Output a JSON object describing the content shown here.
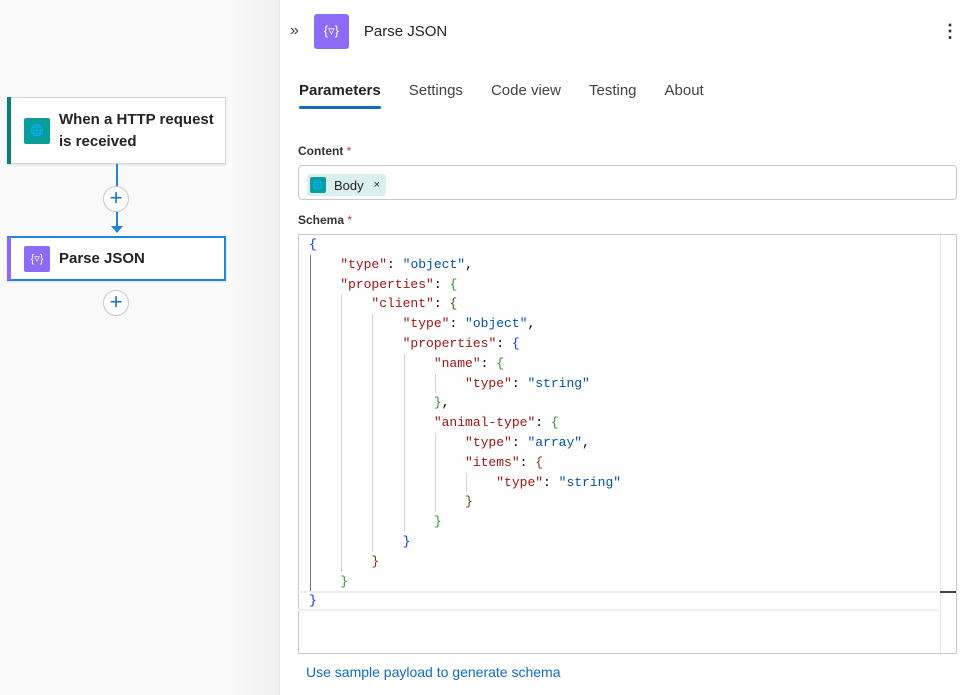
{
  "canvas": {
    "nodes": [
      {
        "label": "When a HTTP request is received",
        "icon": "http-request-icon",
        "color": "#0a9e9a"
      },
      {
        "label": "Parse JSON",
        "icon": "parse-json-icon",
        "color": "#8c6cf7"
      }
    ]
  },
  "panel": {
    "title": "Parse JSON",
    "icon": "parse-json-icon",
    "tabs": [
      "Parameters",
      "Settings",
      "Code view",
      "Testing",
      "About"
    ],
    "active_tab": "Parameters",
    "content_label": "Content",
    "schema_label": "Schema",
    "required_mark": "*",
    "content_token": {
      "label": "Body",
      "remove": "×"
    },
    "schema_lines": [
      {
        "i": 0,
        "t": [
          [
            "b0",
            "{"
          ]
        ]
      },
      {
        "i": 1,
        "t": [
          [
            "k",
            "\"type\""
          ],
          [
            "p",
            ": "
          ],
          [
            "s",
            "\"object\""
          ],
          [
            "p",
            ","
          ]
        ]
      },
      {
        "i": 1,
        "t": [
          [
            "k",
            "\"properties\""
          ],
          [
            "p",
            ": "
          ],
          [
            "b1",
            "{"
          ]
        ]
      },
      {
        "i": 2,
        "t": [
          [
            "k",
            "\"client\""
          ],
          [
            "p",
            ": "
          ],
          [
            "b2",
            "{"
          ]
        ]
      },
      {
        "i": 3,
        "t": [
          [
            "k",
            "\"type\""
          ],
          [
            "p",
            ": "
          ],
          [
            "s",
            "\"object\""
          ],
          [
            "p",
            ","
          ]
        ]
      },
      {
        "i": 3,
        "t": [
          [
            "k",
            "\"properties\""
          ],
          [
            "p",
            ": "
          ],
          [
            "b0",
            "{"
          ]
        ]
      },
      {
        "i": 4,
        "t": [
          [
            "k",
            "\"name\""
          ],
          [
            "p",
            ": "
          ],
          [
            "b1",
            "{"
          ]
        ]
      },
      {
        "i": 5,
        "t": [
          [
            "k",
            "\"type\""
          ],
          [
            "p",
            ": "
          ],
          [
            "s",
            "\"string\""
          ]
        ]
      },
      {
        "i": 4,
        "t": [
          [
            "b1",
            "}"
          ],
          [
            "p",
            ","
          ]
        ]
      },
      {
        "i": 4,
        "t": [
          [
            "k",
            "\"animal-type\""
          ],
          [
            "p",
            ": "
          ],
          [
            "b1",
            "{"
          ]
        ]
      },
      {
        "i": 5,
        "t": [
          [
            "k",
            "\"type\""
          ],
          [
            "p",
            ": "
          ],
          [
            "s",
            "\"array\""
          ],
          [
            "p",
            ","
          ]
        ]
      },
      {
        "i": 5,
        "t": [
          [
            "k",
            "\"items\""
          ],
          [
            "p",
            ": "
          ],
          [
            "b2",
            "{"
          ]
        ]
      },
      {
        "i": 6,
        "t": [
          [
            "k",
            "\"type\""
          ],
          [
            "p",
            ": "
          ],
          [
            "s",
            "\"string\""
          ]
        ]
      },
      {
        "i": 5,
        "t": [
          [
            "b2",
            "}"
          ]
        ]
      },
      {
        "i": 4,
        "t": [
          [
            "b1",
            "}"
          ]
        ]
      },
      {
        "i": 3,
        "t": [
          [
            "b0",
            "}"
          ]
        ]
      },
      {
        "i": 2,
        "t": [
          [
            "b2",
            "}"
          ]
        ]
      },
      {
        "i": 1,
        "t": [
          [
            "b1",
            "}"
          ]
        ]
      },
      {
        "i": 0,
        "t": [
          [
            "b0",
            "}"
          ]
        ]
      }
    ],
    "sample_link": "Use sample payload to generate schema"
  },
  "colors": {
    "accent": "#0f6cbd",
    "trigger": "#0a9e9a",
    "action": "#8c6cf7"
  }
}
